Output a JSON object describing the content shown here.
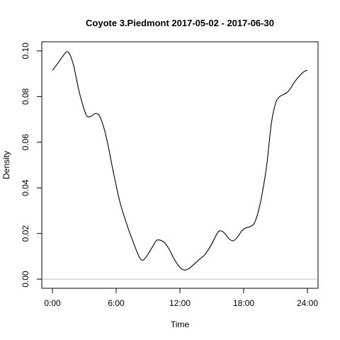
{
  "chart_data": {
    "type": "line",
    "title": "Coyote 3.Piedmont 2017-05-02 - 2017-06-30",
    "xlabel": "Time",
    "ylabel": "Density",
    "xlim": [
      -1.0,
      25.0
    ],
    "ylim": [
      -0.004,
      0.104
    ],
    "x_ticks": [
      0,
      6,
      12,
      18,
      24
    ],
    "x_tick_labels": [
      "0:00",
      "6:00",
      "12:00",
      "18:00",
      "24:00"
    ],
    "y_ticks": [
      0.0,
      0.02,
      0.04,
      0.06,
      0.08,
      0.1
    ],
    "y_tick_labels": [
      "0.00",
      "0.02",
      "0.04",
      "0.06",
      "0.08",
      "0.10"
    ],
    "baseline": 0,
    "grid": false,
    "legend": "none",
    "series": [
      {
        "color": "#000000",
        "x": [
          0,
          0.5,
          1.0,
          1.3,
          1.6,
          2.0,
          2.5,
          3.0,
          3.3,
          3.7,
          4.0,
          4.4,
          4.8,
          5.2,
          5.6,
          6.0,
          6.4,
          7.0,
          7.5,
          8.0,
          8.3,
          8.6,
          9.0,
          9.5,
          9.8,
          10.2,
          10.6,
          11.0,
          11.5,
          12.0,
          12.4,
          12.8,
          13.2,
          13.8,
          14.4,
          15.0,
          15.5,
          15.8,
          16.2,
          16.6,
          17.0,
          17.4,
          17.8,
          18.2,
          18.6,
          19.0,
          19.4,
          19.8,
          20.2,
          20.6,
          21.0,
          21.4,
          22.0,
          22.4,
          22.8,
          23.3,
          23.7,
          24.0
        ],
        "y": [
          0.0915,
          0.0945,
          0.0978,
          0.0995,
          0.0988,
          0.0935,
          0.0825,
          0.0742,
          0.0712,
          0.0715,
          0.0725,
          0.0718,
          0.067,
          0.0595,
          0.05,
          0.041,
          0.033,
          0.024,
          0.0175,
          0.0115,
          0.0088,
          0.0085,
          0.011,
          0.0148,
          0.017,
          0.017,
          0.0158,
          0.013,
          0.0085,
          0.0052,
          0.004,
          0.0045,
          0.006,
          0.0085,
          0.011,
          0.0155,
          0.02,
          0.0212,
          0.0202,
          0.0178,
          0.0168,
          0.0183,
          0.021,
          0.0225,
          0.023,
          0.0245,
          0.03,
          0.039,
          0.051,
          0.068,
          0.077,
          0.08,
          0.0815,
          0.0835,
          0.0865,
          0.0893,
          0.091,
          0.0915
        ]
      }
    ]
  }
}
